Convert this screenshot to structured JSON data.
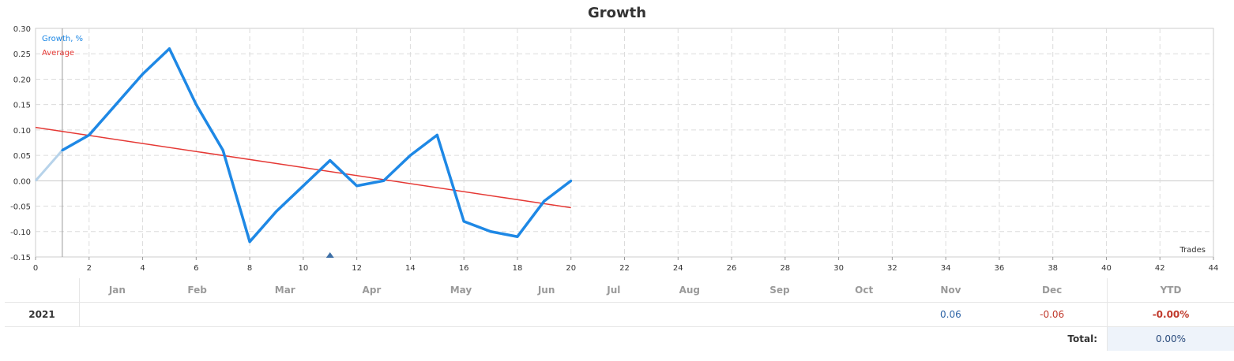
{
  "chart_data": {
    "type": "line",
    "title": "Growth",
    "xlabel": "Trades",
    "x_ticks": [
      0,
      2,
      4,
      6,
      8,
      10,
      12,
      14,
      16,
      18,
      20,
      22,
      24,
      26,
      28,
      30,
      32,
      34,
      36,
      38,
      40,
      42,
      44
    ],
    "y_ticks": [
      "0.30",
      "0.25",
      "0.20",
      "0.15",
      "0.10",
      "0.05",
      "0.00",
      "-0.05",
      "-0.10",
      "-0.15"
    ],
    "xlim": [
      0,
      44
    ],
    "ylim": [
      -0.15,
      0.3
    ],
    "grid": true,
    "legend_position": "top-left",
    "series": [
      {
        "name": "Growth, %",
        "color": "#1e88e5",
        "x": [
          1,
          2,
          3,
          4,
          5,
          6,
          7,
          8,
          9,
          10,
          11,
          12,
          13,
          14,
          15,
          16,
          17,
          18,
          19,
          20
        ],
        "y": [
          0.06,
          0.09,
          0.15,
          0.21,
          0.26,
          0.15,
          0.06,
          -0.12,
          -0.06,
          -0.01,
          0.04,
          -0.01,
          0.0,
          0.05,
          0.09,
          -0.08,
          -0.1,
          -0.11,
          -0.04,
          0.0
        ]
      },
      {
        "name": "Average",
        "color": "#e53935",
        "x": [
          0,
          20
        ],
        "y": [
          0.105,
          -0.053
        ]
      }
    ],
    "initial_segment": {
      "color": "#b7d3ea",
      "x": [
        0,
        1
      ],
      "y": [
        0.0,
        0.06
      ]
    },
    "marker": {
      "color": "#3d6fa6",
      "x": 11
    }
  },
  "table": {
    "months": [
      "Jan",
      "Feb",
      "Mar",
      "Apr",
      "May",
      "Jun",
      "Jul",
      "Aug",
      "Sep",
      "Oct",
      "Nov",
      "Dec"
    ],
    "ytd_header": "YTD",
    "year": "2021",
    "values": [
      "",
      "",
      "",
      "",
      "",
      "",
      "",
      "",
      "",
      "",
      "0.06",
      "-0.06"
    ],
    "ytd": "-0.00%",
    "total_label": "Total:",
    "total": "0.00%"
  }
}
